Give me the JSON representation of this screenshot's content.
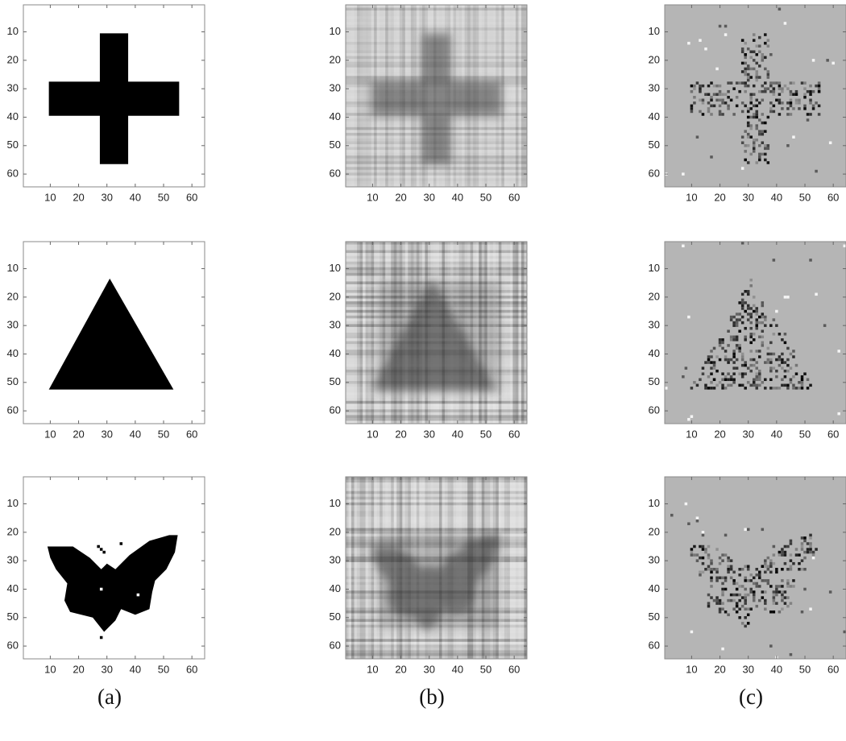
{
  "figure": {
    "axes": {
      "xlim": [
        0.5,
        64.5
      ],
      "ylim": [
        0.5,
        64.5
      ],
      "xticks": [
        10,
        20,
        30,
        40,
        50,
        60
      ],
      "yticks": [
        10,
        20,
        30,
        40,
        50,
        60
      ]
    },
    "captions": [
      "(a)",
      "(b)",
      "(c)"
    ]
  }
}
